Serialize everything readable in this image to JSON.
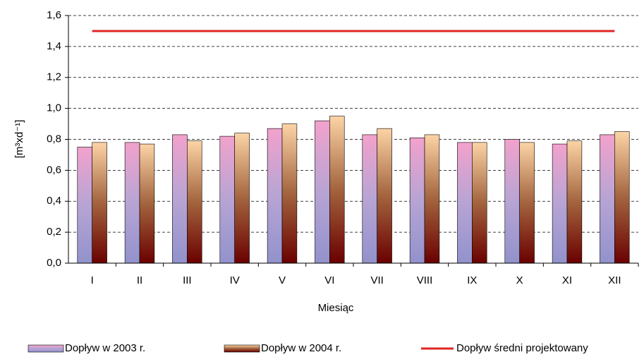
{
  "chart_data": {
    "type": "bar",
    "x_label": "Miesiąc",
    "y_label": "[m³xd⁻¹]",
    "categories": [
      "I",
      "II",
      "III",
      "IV",
      "V",
      "VI",
      "VII",
      "VIII",
      "IX",
      "X",
      "XI",
      "XII"
    ],
    "series": [
      {
        "name": "Dopływ w 2003 r.",
        "colors": [
          "#f2a2cc",
          "#b7a4d4",
          "#9292cc"
        ],
        "values": [
          0.75,
          0.78,
          0.83,
          0.82,
          0.87,
          0.92,
          0.83,
          0.81,
          0.78,
          0.8,
          0.77,
          0.83
        ]
      },
      {
        "name": "Dopływ w 2004 r.",
        "colors": [
          "#fcd4a6",
          "#a3643e",
          "#6a0000"
        ],
        "values": [
          0.78,
          0.77,
          0.79,
          0.84,
          0.9,
          0.95,
          0.87,
          0.83,
          0.78,
          0.78,
          0.79,
          0.85
        ]
      },
      {
        "name": "Dopływ średni projektowany",
        "type": "line",
        "colors": [
          "#e02424"
        ],
        "values": [
          1.5,
          1.5,
          1.5,
          1.5,
          1.5,
          1.5,
          1.5,
          1.5,
          1.5,
          1.5,
          1.5,
          1.5
        ]
      }
    ],
    "ylim": [
      0,
      1.6
    ],
    "yticks": [
      {
        "value": 0,
        "label": "0,0"
      },
      {
        "value": 0.2,
        "label": "0,2"
      },
      {
        "value": 0.4,
        "label": "0,4"
      },
      {
        "value": 0.6,
        "label": "0,6"
      },
      {
        "value": 0.8,
        "label": "0,8"
      },
      {
        "value": 1.0,
        "label": "1,0"
      },
      {
        "value": 1.2,
        "label": "1,2"
      },
      {
        "value": 1.4,
        "label": "1,4"
      },
      {
        "value": 1.6,
        "label": "1,6"
      }
    ],
    "grid": true
  }
}
